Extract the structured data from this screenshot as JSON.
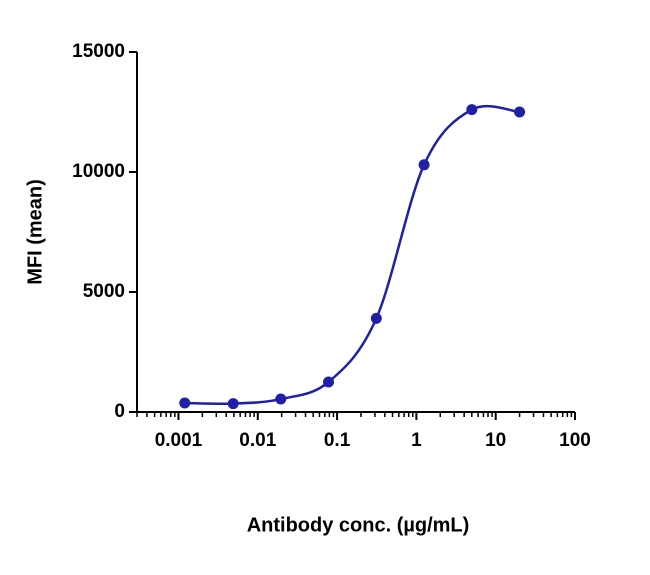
{
  "chart_data": {
    "type": "scatter",
    "x_label": "Antibody conc. (µg/mL)",
    "y_label": "MFI (mean)",
    "x_scale": "log",
    "xlim": [
      0.0003,
      100
    ],
    "xticks": [
      0.001,
      0.01,
      0.1,
      1,
      10,
      100
    ],
    "ylim": [
      0,
      15000
    ],
    "yticks": [
      0,
      5000,
      10000,
      15000
    ],
    "fit_curve": true,
    "series": [
      {
        "color": "#1f1fa8",
        "x": [
          0.0012,
          0.0049,
          0.0195,
          0.078,
          0.3125,
          1.25,
          5,
          20
        ],
        "values": [
          375,
          350,
          540,
          1250,
          3900,
          10300,
          12600,
          12500
        ]
      }
    ]
  }
}
